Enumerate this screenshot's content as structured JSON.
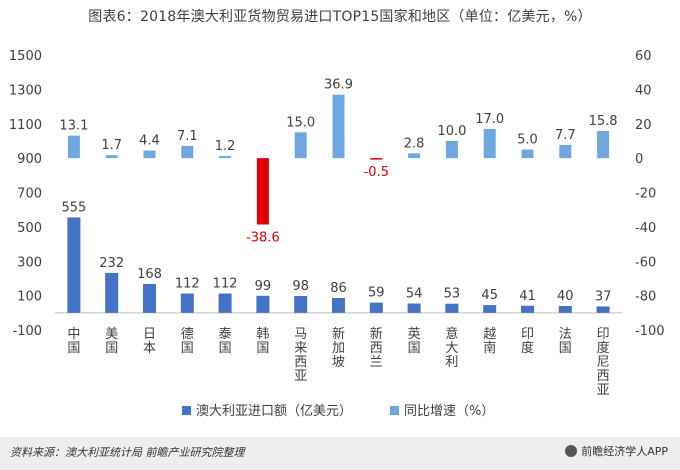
{
  "title": "图表6：2018年澳大利亚货物贸易进口TOP15国家和地区（单位：亿美元，%）",
  "source": "资料来源：澳大利亚统计局  前瞻产业研究院整理",
  "brand": "前瞻经济学人APP",
  "colors": {
    "bar": "#4472C4",
    "growth": "#6FA8E0",
    "negative": "#E00000",
    "axis": "#BFBFBF",
    "text": "#404040"
  },
  "chart_data": {
    "type": "bar",
    "categories": [
      "中国",
      "美国",
      "日本",
      "德国",
      "泰国",
      "韩国",
      "马来西亚",
      "新加坡",
      "新西兰",
      "英国",
      "意大利",
      "越南",
      "印度",
      "法国",
      "印度尼西亚"
    ],
    "series": [
      {
        "name": "澳大利亚进口额（亿美元）",
        "axis": "left",
        "values": [
          555,
          232,
          168,
          112,
          112,
          99,
          98,
          86,
          59,
          54,
          53,
          45,
          41,
          40,
          37
        ]
      },
      {
        "name": "同比增速（%）",
        "axis": "right",
        "values": [
          13.1,
          1.7,
          4.4,
          7.1,
          1.2,
          -38.6,
          15.0,
          36.9,
          -0.5,
          2.8,
          10.0,
          17.0,
          5.0,
          7.7,
          15.8
        ]
      }
    ],
    "value_labels": [
      "555",
      "232",
      "168",
      "112",
      "112",
      "99",
      "98",
      "86",
      "59",
      "54",
      "53",
      "45",
      "41",
      "40",
      "37"
    ],
    "growth_labels": [
      "13.1",
      "1.7",
      "4.4",
      "7.1",
      "1.2",
      "-38.6",
      "15.0",
      "36.9",
      "-0.5",
      "2.8",
      "10.0",
      "17.0",
      "5.0",
      "7.7",
      "15.8"
    ],
    "left_ticks": [
      "1500",
      "1300",
      "1100",
      "900",
      "700",
      "500",
      "300",
      "100",
      "-100"
    ],
    "right_ticks": [
      "60",
      "40",
      "20",
      "0",
      "-20",
      "-40",
      "-60",
      "-80",
      "-100"
    ],
    "ylim_left": [
      -100,
      1500
    ],
    "ylim_right": [
      -100,
      60
    ],
    "legend_position": "bottom"
  }
}
